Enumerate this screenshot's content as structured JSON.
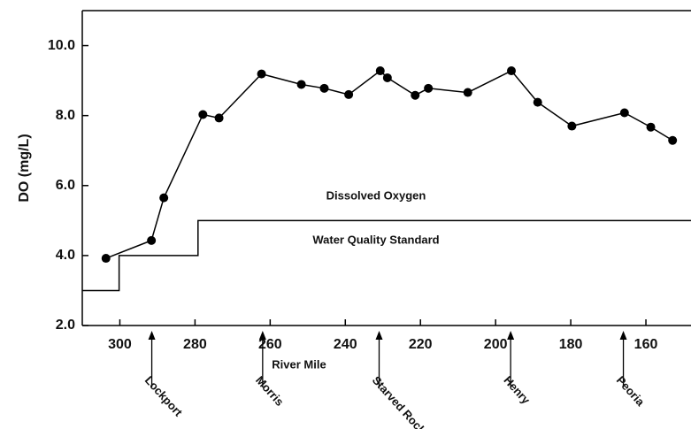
{
  "chart_data": {
    "type": "line",
    "xlabel": "River Mile",
    "ylabel": "DO (mg/L)",
    "xlim": [
      310,
      148
    ],
    "ylim": [
      2,
      11
    ],
    "xticks": [
      300,
      280,
      260,
      240,
      220,
      200,
      180,
      160
    ],
    "yticks": [
      {
        "value": 2,
        "label": "2.0"
      },
      {
        "value": 4,
        "label": "4.0"
      },
      {
        "value": 6,
        "label": "6.0"
      },
      {
        "value": 8,
        "label": "8.0"
      },
      {
        "value": 10,
        "label": "10.0"
      }
    ],
    "series": [
      {
        "name": "Dissolved Oxygen",
        "color": "#000000",
        "markers": true,
        "x": [
          303.7,
          291.6,
          288.3,
          277.9,
          273.6,
          262.3,
          251.7,
          245.6,
          239.1,
          230.7,
          228.8,
          221.4,
          217.9,
          207.4,
          195.8,
          188.8,
          179.7,
          165.7,
          158.7,
          152.9
        ],
        "values": [
          3.92,
          4.43,
          5.65,
          8.03,
          7.93,
          9.19,
          8.89,
          8.78,
          8.6,
          9.28,
          9.08,
          8.58,
          8.78,
          8.66,
          9.28,
          8.38,
          7.7,
          8.08,
          7.67,
          7.29
        ]
      },
      {
        "name": "Water Quality Standard",
        "color": "#000000",
        "markers": false,
        "x": [
          310,
          300.2,
          300.2,
          279.2,
          279.2,
          148
        ],
        "values": [
          3,
          3,
          4,
          4,
          5,
          5
        ]
      }
    ],
    "locations": [
      {
        "label": "Lockport",
        "mile": 291.5
      },
      {
        "label": "Morris",
        "mile": 262
      },
      {
        "label": "Starved Rock",
        "mile": 231
      },
      {
        "label": "Henry",
        "mile": 196
      },
      {
        "label": "Peoria",
        "mile": 166
      }
    ]
  }
}
